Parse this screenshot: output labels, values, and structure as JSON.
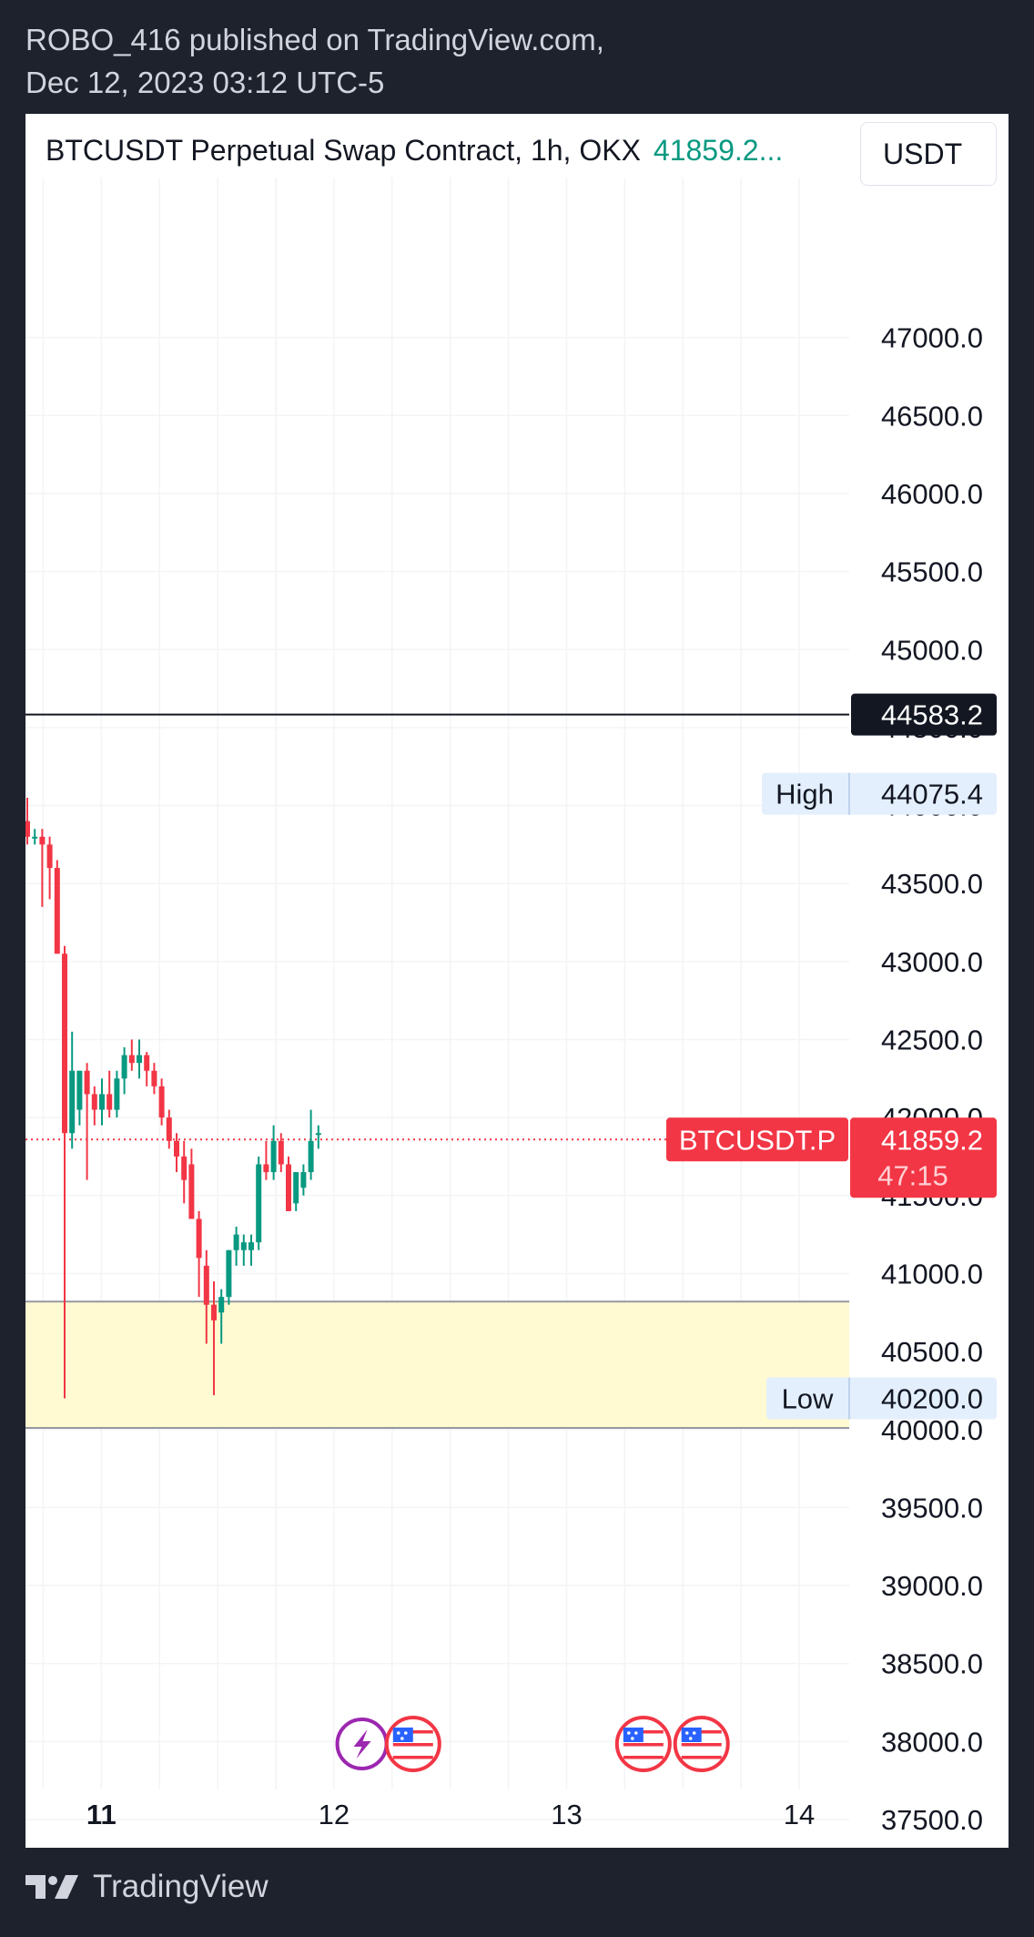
{
  "header": {
    "publisher_line": "ROBO_416 published on TradingView.com,",
    "date_line": "Dec 12, 2023 03:12 UTC-5"
  },
  "chart_header": {
    "title": "BTCUSDT Perpetual Swap Contract, 1h, OKX",
    "price": "41859.2...",
    "currency_button": "USDT"
  },
  "footer": {
    "brand": "TradingView",
    "logo_icon": "tradingview-logo-icon"
  },
  "colors": {
    "up": "#089981",
    "down": "#f23645",
    "zone_fill": "#fffad1",
    "axis_label_dark": "#131722",
    "label_box": "#e3effd"
  },
  "chart_data": {
    "type": "candlestick",
    "symbol_label": "BTCUSDT.P",
    "interval": "1h",
    "exchange": "OKX",
    "ylim": [
      37300,
      47500
    ],
    "y_ticks": [
      "47000.0",
      "46500.0",
      "46000.0",
      "45500.0",
      "45000.0",
      "44500.0",
      "44000.0",
      "43500.0",
      "43000.0",
      "42500.0",
      "42000.0",
      "41500.0",
      "41000.0",
      "40500.0",
      "40000.0",
      "39500.0",
      "39000.0",
      "38500.0",
      "38000.0",
      "37500.0"
    ],
    "x_ticks": [
      {
        "label": "11",
        "day": 11,
        "bold": true
      },
      {
        "label": "12",
        "day": 12,
        "bold": false
      },
      {
        "label": "13",
        "day": 13,
        "bold": false
      },
      {
        "label": "14",
        "day": 14,
        "bold": false
      }
    ],
    "xlim_days": [
      10.674,
      14.215
    ],
    "candles": [
      {
        "o": 43900,
        "h": 44050,
        "l": 43750,
        "c": 43800
      },
      {
        "o": 43800,
        "h": 43850,
        "l": 43750,
        "c": 43800
      },
      {
        "o": 43800,
        "h": 43850,
        "l": 43350,
        "c": 43750
      },
      {
        "o": 43750,
        "h": 43800,
        "l": 43400,
        "c": 43600
      },
      {
        "o": 43600,
        "h": 43650,
        "l": 43050,
        "c": 43050
      },
      {
        "o": 43050,
        "h": 43100,
        "l": 40200,
        "c": 41900
      },
      {
        "o": 41900,
        "h": 42550,
        "l": 41800,
        "c": 42300
      },
      {
        "o": 42050,
        "h": 42300,
        "l": 41950,
        "c": 42300
      },
      {
        "o": 42300,
        "h": 42350,
        "l": 41600,
        "c": 42150
      },
      {
        "o": 42150,
        "h": 42200,
        "l": 41950,
        "c": 42050
      },
      {
        "o": 42050,
        "h": 42250,
        "l": 41950,
        "c": 42150
      },
      {
        "o": 42150,
        "h": 42300,
        "l": 42000,
        "c": 42050
      },
      {
        "o": 42050,
        "h": 42300,
        "l": 42000,
        "c": 42250
      },
      {
        "o": 42250,
        "h": 42450,
        "l": 42150,
        "c": 42400
      },
      {
        "o": 42400,
        "h": 42500,
        "l": 42300,
        "c": 42350
      },
      {
        "o": 42350,
        "h": 42500,
        "l": 42250,
        "c": 42400
      },
      {
        "o": 42400,
        "h": 42420,
        "l": 42200,
        "c": 42300
      },
      {
        "o": 42300,
        "h": 42350,
        "l": 42150,
        "c": 42200
      },
      {
        "o": 42200,
        "h": 42250,
        "l": 41950,
        "c": 42000
      },
      {
        "o": 42000,
        "h": 42050,
        "l": 41800,
        "c": 41850
      },
      {
        "o": 41850,
        "h": 41900,
        "l": 41650,
        "c": 41750
      },
      {
        "o": 41750,
        "h": 41850,
        "l": 41450,
        "c": 41600
      },
      {
        "o": 41700,
        "h": 41800,
        "l": 41350,
        "c": 41350
      },
      {
        "o": 41350,
        "h": 41400,
        "l": 40850,
        "c": 41100
      },
      {
        "o": 41050,
        "h": 41150,
        "l": 40550,
        "c": 40800
      },
      {
        "o": 40800,
        "h": 40950,
        "l": 40220,
        "c": 40700
      },
      {
        "o": 40750,
        "h": 40900,
        "l": 40550,
        "c": 40850
      },
      {
        "o": 40850,
        "h": 41150,
        "l": 40800,
        "c": 41150
      },
      {
        "o": 41150,
        "h": 41300,
        "l": 41050,
        "c": 41250
      },
      {
        "o": 41150,
        "h": 41250,
        "l": 41050,
        "c": 41200
      },
      {
        "o": 41150,
        "h": 41250,
        "l": 41050,
        "c": 41200
      },
      {
        "o": 41200,
        "h": 41750,
        "l": 41150,
        "c": 41700
      },
      {
        "o": 41700,
        "h": 41850,
        "l": 41600,
        "c": 41650
      },
      {
        "o": 41650,
        "h": 41950,
        "l": 41600,
        "c": 41850
      },
      {
        "o": 41850,
        "h": 41900,
        "l": 41650,
        "c": 41700
      },
      {
        "o": 41700,
        "h": 41750,
        "l": 41400,
        "c": 41400
      },
      {
        "o": 41450,
        "h": 41650,
        "l": 41400,
        "c": 41650
      },
      {
        "o": 41550,
        "h": 41700,
        "l": 41500,
        "c": 41650
      },
      {
        "o": 41650,
        "h": 42050,
        "l": 41600,
        "c": 41850
      },
      {
        "o": 41900,
        "h": 41950,
        "l": 41800,
        "c": 41900
      }
    ],
    "horizontal_line": {
      "price": 44583.2,
      "label": "44583.2"
    },
    "high": {
      "label": "High",
      "value": "44075.4",
      "price": 44075.4
    },
    "low": {
      "label": "Low",
      "value": "40200.0",
      "price": 40200.0
    },
    "zone": {
      "top": 40820,
      "bottom": 40010
    },
    "last_price": {
      "price": 41859.2,
      "value": "41859.2",
      "countdown": "47:15"
    },
    "event_icons": [
      {
        "name": "lightning-event-icon",
        "day": 12.12
      },
      {
        "name": "us-flag-event-icon",
        "day": 12.34
      },
      {
        "name": "us-flag-event-icon",
        "day": 13.33
      },
      {
        "name": "us-flag-event-icon",
        "day": 13.58
      }
    ]
  }
}
